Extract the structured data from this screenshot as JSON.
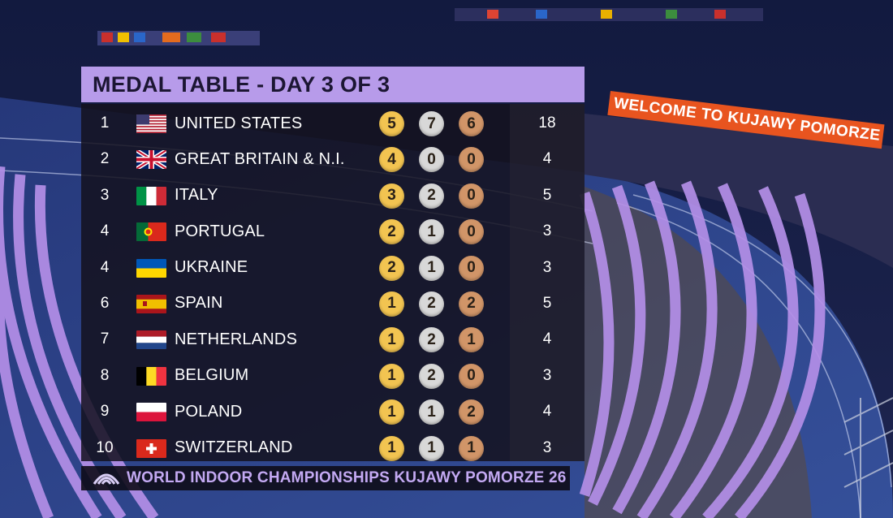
{
  "title": "MEDAL TABLE - DAY 3 OF 3",
  "footer": "WORLD INDOOR CHAMPIONSHIPS KUJAWY POMORZE 26",
  "banner": "WELCOME  TO  KUJAWY POMORZE",
  "footer_logo_icon": "championship-logo-icon",
  "colors": {
    "title_bar": "#b79bea",
    "gold": "#f2c451",
    "silver": "#d8d8d8",
    "bronze": "#d19568",
    "track_lines": "#b48fe8",
    "track": "#2c3f86"
  },
  "rows": [
    {
      "rank": "1",
      "flag": "usa-flag-icon",
      "country": "UNITED STATES",
      "gold": "5",
      "silver": "7",
      "bronze": "6",
      "total": "18"
    },
    {
      "rank": "2",
      "flag": "uk-flag-icon",
      "country": "GREAT BRITAIN & N.I.",
      "gold": "4",
      "silver": "0",
      "bronze": "0",
      "total": "4"
    },
    {
      "rank": "3",
      "flag": "italy-flag-icon",
      "country": "ITALY",
      "gold": "3",
      "silver": "2",
      "bronze": "0",
      "total": "5"
    },
    {
      "rank": "4",
      "flag": "portugal-flag-icon",
      "country": "PORTUGAL",
      "gold": "2",
      "silver": "1",
      "bronze": "0",
      "total": "3"
    },
    {
      "rank": "4",
      "flag": "ukraine-flag-icon",
      "country": "UKRAINE",
      "gold": "2",
      "silver": "1",
      "bronze": "0",
      "total": "3"
    },
    {
      "rank": "6",
      "flag": "spain-flag-icon",
      "country": "SPAIN",
      "gold": "1",
      "silver": "2",
      "bronze": "2",
      "total": "5"
    },
    {
      "rank": "7",
      "flag": "netherlands-flag-icon",
      "country": "NETHERLANDS",
      "gold": "1",
      "silver": "2",
      "bronze": "1",
      "total": "4"
    },
    {
      "rank": "8",
      "flag": "belgium-flag-icon",
      "country": "BELGIUM",
      "gold": "1",
      "silver": "2",
      "bronze": "0",
      "total": "3"
    },
    {
      "rank": "9",
      "flag": "poland-flag-icon",
      "country": "POLAND",
      "gold": "1",
      "silver": "1",
      "bronze": "2",
      "total": "4"
    },
    {
      "rank": "10",
      "flag": "switzerland-flag-icon",
      "country": "SWITZERLAND",
      "gold": "1",
      "silver": "1",
      "bronze": "1",
      "total": "3"
    }
  ]
}
